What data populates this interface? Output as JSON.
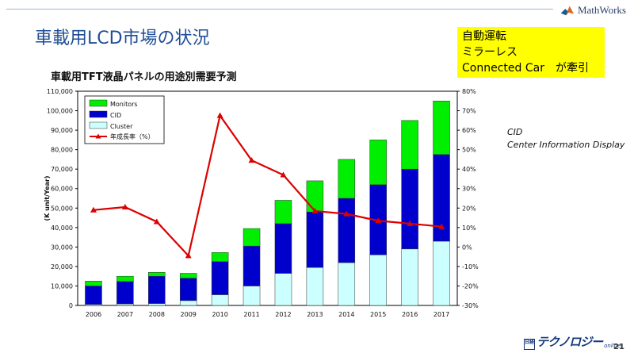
{
  "header": {
    "title": "車載用LCD市場の状況",
    "logo_text": "MathWorks",
    "page_number": "21"
  },
  "callout": {
    "lines": [
      "自動運転",
      "ミラーレス",
      "Connected Car　が牽引"
    ],
    "color": "#ffff00"
  },
  "note": {
    "line1": "CID",
    "line2": "Center Information Display"
  },
  "brand": {
    "box_text": "日経",
    "word": "テクノロジー",
    "sub": "online"
  },
  "chart_data": {
    "type": "bar",
    "stacked": true,
    "title": "車載用TFT液晶パネルの用途別需要予測",
    "ylabel": "(K unit/Year)",
    "ylim": [
      0,
      110000
    ],
    "yticks": [
      "0",
      "10,000",
      "20,000",
      "30,000",
      "40,000",
      "50,000",
      "60,000",
      "70,000",
      "80,000",
      "90,000",
      "100,000",
      "110,000"
    ],
    "y2lim": [
      -0.3,
      0.8
    ],
    "y2ticks": [
      "-30%",
      "-20%",
      "-10%",
      "0%",
      "10%",
      "20%",
      "30%",
      "40%",
      "50%",
      "60%",
      "70%",
      "80%"
    ],
    "categories": [
      "2006",
      "2007",
      "2008",
      "2009",
      "2010",
      "2011",
      "2012",
      "2013",
      "2014",
      "2015",
      "2016",
      "2017"
    ],
    "series": [
      {
        "name": "Cluster",
        "color": "#ccffff",
        "values": [
          500,
          800,
          1000,
          2500,
          5500,
          10000,
          16500,
          19500,
          22000,
          26000,
          29000,
          33000
        ]
      },
      {
        "name": "CID",
        "color": "#0000cc",
        "values": [
          9500,
          11500,
          14000,
          11500,
          17000,
          20500,
          25500,
          28500,
          33000,
          36000,
          41000,
          44500
        ]
      },
      {
        "name": "Monitors",
        "color": "#00ee00",
        "values": [
          2500,
          2700,
          2000,
          2500,
          4700,
          9000,
          12000,
          16000,
          20000,
          23000,
          25000,
          27500
        ]
      }
    ],
    "line": {
      "name": "年成長率（%）",
      "color": "#dd0000",
      "values": [
        0.19,
        0.205,
        0.13,
        -0.045,
        0.675,
        0.445,
        0.37,
        0.185,
        0.17,
        0.135,
        0.12,
        0.105
      ]
    },
    "legend": [
      "Monitors",
      "CID",
      "Cluster",
      "年成長率（%）"
    ],
    "legend_position": "top-left",
    "grid": false
  }
}
